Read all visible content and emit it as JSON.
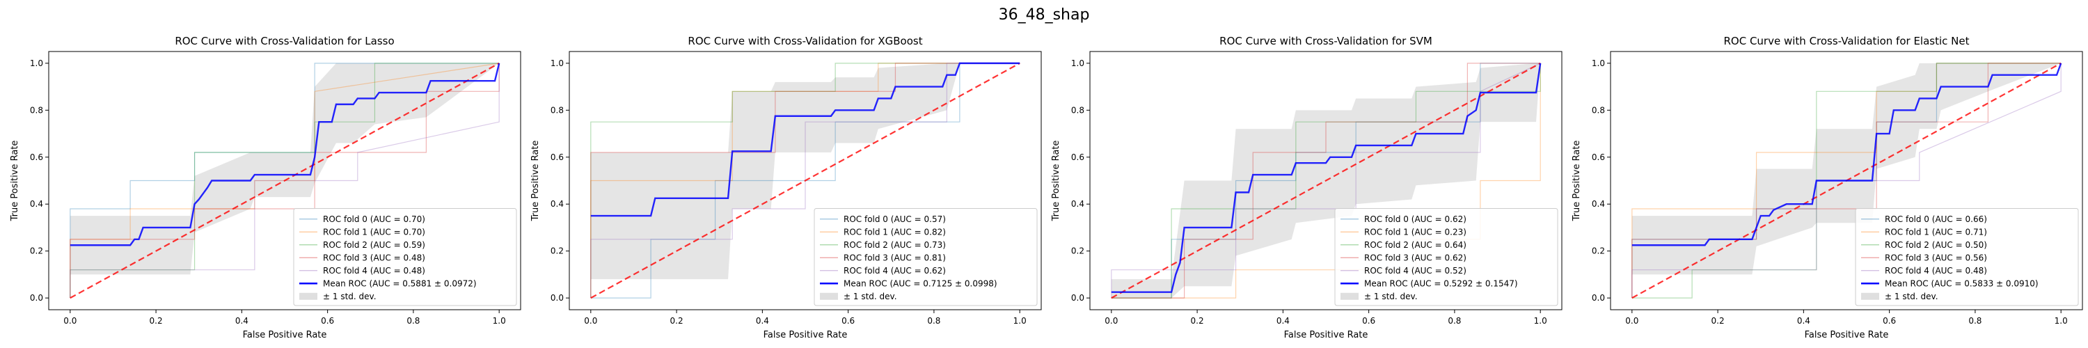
{
  "suptitle": "36_48_shap",
  "colors": {
    "fold": [
      "#1f77b4",
      "#ff7f0e",
      "#2ca02c",
      "#d62728",
      "#9467bd"
    ],
    "mean": "#0000ff",
    "chance": "#ff0000",
    "band": "#bfbfbf"
  },
  "chart_data": [
    {
      "type": "line",
      "title": "ROC Curve with Cross-Validation for Lasso",
      "xlabel": "False Positive Rate",
      "ylabel": "True Positive Rate",
      "xlim": [
        -0.05,
        1.05
      ],
      "ylim": [
        -0.05,
        1.05
      ],
      "xticks": [
        "0.0",
        "0.2",
        "0.4",
        "0.6",
        "0.8",
        "1.0"
      ],
      "yticks": [
        "0.0",
        "0.2",
        "0.4",
        "0.6",
        "0.8",
        "1.0"
      ],
      "legend_position": "lower-right",
      "series": [
        {
          "name": "ROC fold 0 (AUC = 0.70)",
          "kind": "fold",
          "x": [
            0,
            0,
            0.14,
            0.14,
            0.29,
            0.29,
            0.57,
            0.57,
            1.0
          ],
          "y": [
            0,
            0.38,
            0.38,
            0.5,
            0.5,
            0.62,
            0.62,
            1.0,
            1.0
          ]
        },
        {
          "name": "ROC fold 1 (AUC = 0.70)",
          "kind": "fold",
          "x": [
            0,
            0,
            0.14,
            0.14,
            0.43,
            0.43,
            0.57,
            0.57,
            1.0
          ],
          "y": [
            0,
            0.25,
            0.25,
            0.38,
            0.38,
            0.5,
            0.5,
            0.88,
            1.0
          ]
        },
        {
          "name": "ROC fold 2 (AUC = 0.59)",
          "kind": "fold",
          "x": [
            0,
            0,
            0.29,
            0.29,
            0.57,
            0.57,
            0.71,
            0.71,
            1.0
          ],
          "y": [
            0,
            0.12,
            0.12,
            0.62,
            0.62,
            0.75,
            0.75,
            1.0,
            1.0
          ]
        },
        {
          "name": "ROC fold 3 (AUC = 0.48)",
          "kind": "fold",
          "x": [
            0,
            0,
            0.29,
            0.29,
            0.57,
            0.57,
            0.83,
            0.83,
            1.0,
            1.0
          ],
          "y": [
            0,
            0.25,
            0.25,
            0.38,
            0.38,
            0.62,
            0.62,
            0.88,
            0.88,
            1.0
          ]
        },
        {
          "name": "ROC fold 4 (AUC = 0.48)",
          "kind": "fold",
          "x": [
            0,
            0,
            0.43,
            0.43,
            0.67,
            0.67,
            1.0,
            1.0
          ],
          "y": [
            0,
            0.12,
            0.12,
            0.5,
            0.5,
            0.62,
            0.75,
            1.0
          ]
        },
        {
          "name": "Mean ROC (AUC = 0.5881 ± 0.0972)",
          "kind": "mean",
          "x": [
            0,
            0.14,
            0.15,
            0.16,
            0.17,
            0.28,
            0.29,
            0.3,
            0.32,
            0.33,
            0.42,
            0.43,
            0.56,
            0.57,
            0.58,
            0.61,
            0.62,
            0.66,
            0.67,
            0.71,
            0.72,
            0.83,
            0.84,
            0.99,
            1.0
          ],
          "y": [
            0.225,
            0.225,
            0.25,
            0.25,
            0.3,
            0.3,
            0.4,
            0.42,
            0.47,
            0.5,
            0.5,
            0.525,
            0.525,
            0.6,
            0.75,
            0.75,
            0.825,
            0.825,
            0.85,
            0.85,
            0.875,
            0.875,
            0.925,
            0.925,
            1.0
          ]
        },
        {
          "name": "± 1 std. dev.",
          "kind": "band",
          "x": [
            0,
            0.14,
            0.28,
            0.29,
            0.42,
            0.43,
            0.56,
            0.57,
            0.62,
            0.66,
            0.71,
            0.83,
            1.0
          ],
          "lower": [
            0.1,
            0.1,
            0.1,
            0.28,
            0.38,
            0.43,
            0.43,
            0.49,
            0.66,
            0.66,
            0.74,
            0.77,
            1.0
          ],
          "upper": [
            0.35,
            0.35,
            0.35,
            0.52,
            0.62,
            0.62,
            0.62,
            0.9,
            1.0,
            1.0,
            1.0,
            1.0,
            1.0
          ]
        },
        {
          "name": "",
          "kind": "chance",
          "x": [
            0,
            1
          ],
          "y": [
            0,
            1
          ]
        }
      ]
    },
    {
      "type": "line",
      "title": "ROC Curve with Cross-Validation for XGBoost",
      "xlabel": "False Positive Rate",
      "ylabel": "True Positive Rate",
      "xlim": [
        -0.05,
        1.05
      ],
      "ylim": [
        -0.05,
        1.05
      ],
      "xticks": [
        "0.0",
        "0.2",
        "0.4",
        "0.6",
        "0.8",
        "1.0"
      ],
      "yticks": [
        "0.0",
        "0.2",
        "0.4",
        "0.6",
        "0.8",
        "1.0"
      ],
      "legend_position": "lower-right",
      "series": [
        {
          "name": "ROC fold 0 (AUC = 0.57)",
          "kind": "fold",
          "x": [
            0,
            0.14,
            0.14,
            0.29,
            0.29,
            0.57,
            0.57,
            0.86,
            0.86,
            1.0
          ],
          "y": [
            0,
            0,
            0.25,
            0.25,
            0.5,
            0.5,
            0.75,
            0.75,
            1.0,
            1.0
          ]
        },
        {
          "name": "ROC fold 1 (AUC = 0.82)",
          "kind": "fold",
          "x": [
            0,
            0,
            0.33,
            0.33,
            0.67,
            0.67,
            1.0
          ],
          "y": [
            0,
            0.5,
            0.5,
            0.88,
            0.88,
            1.0,
            1.0
          ]
        },
        {
          "name": "ROC fold 2 (AUC = 0.73)",
          "kind": "fold",
          "x": [
            0,
            0,
            0.33,
            0.33,
            0.57,
            0.57,
            1.0
          ],
          "y": [
            0,
            0.75,
            0.75,
            0.88,
            0.88,
            1.0,
            1.0
          ]
        },
        {
          "name": "ROC fold 3 (AUC = 0.81)",
          "kind": "fold",
          "x": [
            0,
            0,
            0.43,
            0.43,
            0.71,
            0.71,
            1.0
          ],
          "y": [
            0,
            0.62,
            0.62,
            0.88,
            0.88,
            1.0,
            1.0
          ]
        },
        {
          "name": "ROC fold 4 (AUC = 0.62)",
          "kind": "fold",
          "x": [
            0,
            0,
            0.33,
            0.33,
            0.5,
            0.5,
            0.83,
            0.83,
            1.0
          ],
          "y": [
            0,
            0.25,
            0.25,
            0.38,
            0.38,
            0.75,
            0.75,
            1.0,
            1.0
          ]
        },
        {
          "name": "Mean ROC (AUC = 0.7125 ± 0.0998)",
          "kind": "mean",
          "x": [
            0,
            0.14,
            0.15,
            0.32,
            0.33,
            0.42,
            0.43,
            0.56,
            0.57,
            0.66,
            0.67,
            0.7,
            0.71,
            0.82,
            0.83,
            0.85,
            0.86,
            1.0
          ],
          "y": [
            0.35,
            0.35,
            0.425,
            0.425,
            0.625,
            0.625,
            0.775,
            0.775,
            0.8,
            0.8,
            0.85,
            0.85,
            0.9,
            0.9,
            0.95,
            0.95,
            1.0,
            1.0
          ]
        },
        {
          "name": "± 1 std. dev.",
          "kind": "band",
          "x": [
            0,
            0.14,
            0.32,
            0.33,
            0.42,
            0.43,
            0.56,
            0.57,
            0.66,
            0.67,
            0.83,
            0.86,
            1.0
          ],
          "lower": [
            0.08,
            0.08,
            0.08,
            0.38,
            0.38,
            0.62,
            0.62,
            0.66,
            0.66,
            0.72,
            0.8,
            1.0,
            1.0
          ],
          "upper": [
            0.62,
            0.62,
            0.62,
            0.88,
            0.88,
            0.92,
            0.92,
            0.94,
            0.94,
            0.98,
            1.0,
            1.0,
            1.0
          ]
        },
        {
          "name": "",
          "kind": "chance",
          "x": [
            0,
            1
          ],
          "y": [
            0,
            1
          ]
        }
      ]
    },
    {
      "type": "line",
      "title": "ROC Curve with Cross-Validation for SVM",
      "xlabel": "False Positive Rate",
      "ylabel": "True Positive Rate",
      "xlim": [
        -0.05,
        1.05
      ],
      "ylim": [
        -0.05,
        1.05
      ],
      "xticks": [
        "0.0",
        "0.2",
        "0.4",
        "0.6",
        "0.8",
        "1.0"
      ],
      "yticks": [
        "0.0",
        "0.2",
        "0.4",
        "0.6",
        "0.8",
        "1.0"
      ],
      "legend_position": "lower-right",
      "series": [
        {
          "name": "ROC fold 0 (AUC = 0.62)",
          "kind": "fold",
          "x": [
            0,
            0.14,
            0.14,
            0.29,
            0.29,
            0.43,
            0.43,
            0.57,
            0.57,
            0.86,
            0.86,
            1.0
          ],
          "y": [
            0,
            0,
            0.25,
            0.25,
            0.5,
            0.5,
            0.62,
            0.62,
            0.75,
            0.75,
            1.0,
            1.0
          ]
        },
        {
          "name": "ROC fold 1 (AUC = 0.23)",
          "kind": "fold",
          "x": [
            0,
            0.29,
            0.29,
            0.71,
            0.71,
            0.86,
            0.86,
            1.0,
            1.0
          ],
          "y": [
            0,
            0,
            0.12,
            0.12,
            0.25,
            0.25,
            0.5,
            0.5,
            1.0
          ]
        },
        {
          "name": "ROC fold 2 (AUC = 0.64)",
          "kind": "fold",
          "x": [
            0,
            0.14,
            0.14,
            0.43,
            0.43,
            0.71,
            0.71,
            1.0,
            1.0
          ],
          "y": [
            0,
            0,
            0.38,
            0.38,
            0.75,
            0.75,
            0.88,
            0.88,
            1.0
          ]
        },
        {
          "name": "ROC fold 3 (AUC = 0.62)",
          "kind": "fold",
          "x": [
            0,
            0.17,
            0.17,
            0.33,
            0.33,
            0.5,
            0.5,
            0.83,
            0.83,
            1.0
          ],
          "y": [
            0,
            0,
            0.25,
            0.25,
            0.62,
            0.62,
            0.75,
            0.75,
            1.0,
            1.0
          ]
        },
        {
          "name": "ROC fold 4 (AUC = 0.52)",
          "kind": "fold",
          "x": [
            0,
            0,
            0.29,
            0.29,
            0.57,
            0.57,
            0.86,
            0.86,
            1.0
          ],
          "y": [
            0,
            0.12,
            0.12,
            0.38,
            0.38,
            0.62,
            0.62,
            0.88,
            1.0
          ]
        },
        {
          "name": "Mean ROC (AUC = 0.5292 ± 0.1547)",
          "kind": "mean",
          "x": [
            0,
            0.14,
            0.15,
            0.16,
            0.17,
            0.28,
            0.29,
            0.32,
            0.33,
            0.42,
            0.43,
            0.5,
            0.51,
            0.56,
            0.57,
            0.7,
            0.71,
            0.82,
            0.83,
            0.85,
            0.86,
            0.99,
            1.0
          ],
          "y": [
            0.025,
            0.025,
            0.1,
            0.15,
            0.3,
            0.3,
            0.45,
            0.45,
            0.525,
            0.525,
            0.575,
            0.575,
            0.6,
            0.6,
            0.65,
            0.65,
            0.7,
            0.7,
            0.775,
            0.8,
            0.875,
            0.875,
            1.0
          ]
        },
        {
          "name": "± 1 std. dev.",
          "kind": "band",
          "x": [
            0,
            0.14,
            0.17,
            0.28,
            0.29,
            0.42,
            0.43,
            0.56,
            0.57,
            0.7,
            0.71,
            0.85,
            0.86,
            0.99,
            1.0
          ],
          "lower": [
            0.0,
            0.0,
            0.05,
            0.05,
            0.18,
            0.25,
            0.32,
            0.35,
            0.4,
            0.42,
            0.48,
            0.5,
            0.75,
            0.75,
            1.0
          ],
          "upper": [
            0.08,
            0.08,
            0.5,
            0.5,
            0.72,
            0.72,
            0.8,
            0.8,
            0.85,
            0.85,
            0.9,
            0.92,
            0.98,
            1.0,
            1.0
          ]
        },
        {
          "name": "",
          "kind": "chance",
          "x": [
            0,
            1
          ],
          "y": [
            0,
            1
          ]
        }
      ]
    },
    {
      "type": "line",
      "title": "ROC Curve with Cross-Validation for Elastic Net",
      "xlabel": "False Positive Rate",
      "ylabel": "True Positive Rate",
      "xlim": [
        -0.05,
        1.05
      ],
      "ylim": [
        -0.05,
        1.05
      ],
      "xticks": [
        "0.0",
        "0.2",
        "0.4",
        "0.6",
        "0.8",
        "1.0"
      ],
      "yticks": [
        "0.0",
        "0.2",
        "0.4",
        "0.6",
        "0.8",
        "1.0"
      ],
      "legend_position": "lower-right",
      "series": [
        {
          "name": "ROC fold 0 (AUC = 0.66)",
          "kind": "fold",
          "x": [
            0,
            0,
            0.29,
            0.29,
            0.43,
            0.43,
            0.57,
            0.57,
            0.71,
            0.71,
            1.0
          ],
          "y": [
            0,
            0.25,
            0.25,
            0.38,
            0.38,
            0.5,
            0.5,
            0.75,
            0.75,
            1.0,
            1.0
          ]
        },
        {
          "name": "ROC fold 1 (AUC = 0.71)",
          "kind": "fold",
          "x": [
            0,
            0,
            0.29,
            0.29,
            0.57,
            0.57,
            0.71,
            0.71,
            1.0
          ],
          "y": [
            0,
            0.38,
            0.38,
            0.62,
            0.62,
            0.88,
            0.88,
            1.0,
            1.0
          ]
        },
        {
          "name": "ROC fold 2 (AUC = 0.50)",
          "kind": "fold",
          "x": [
            0,
            0.14,
            0.14,
            0.43,
            0.43,
            0.43,
            0.71,
            0.71,
            1.0
          ],
          "y": [
            0,
            0,
            0.12,
            0.12,
            0.5,
            0.88,
            0.88,
            1.0,
            1.0
          ]
        },
        {
          "name": "ROC fold 3 (AUC = 0.56)",
          "kind": "fold",
          "x": [
            0,
            0,
            0.29,
            0.29,
            0.57,
            0.57,
            0.83,
            0.83,
            1.0
          ],
          "y": [
            0,
            0.25,
            0.25,
            0.38,
            0.38,
            0.75,
            0.75,
            1.0,
            1.0
          ]
        },
        {
          "name": "ROC fold 4 (AUC = 0.48)",
          "kind": "fold",
          "x": [
            0,
            0,
            0.43,
            0.43,
            0.67,
            0.67,
            1.0,
            1.0
          ],
          "y": [
            0,
            0.12,
            0.12,
            0.5,
            0.5,
            0.62,
            0.88,
            1.0
          ]
        },
        {
          "name": "Mean ROC (AUC = 0.5833 ± 0.0910)",
          "kind": "mean",
          "x": [
            0,
            0.17,
            0.18,
            0.28,
            0.29,
            0.3,
            0.32,
            0.33,
            0.36,
            0.42,
            0.43,
            0.56,
            0.57,
            0.6,
            0.61,
            0.66,
            0.67,
            0.71,
            0.72,
            0.83,
            0.84,
            0.99,
            1.0
          ],
          "y": [
            0.225,
            0.225,
            0.25,
            0.25,
            0.3,
            0.35,
            0.35,
            0.375,
            0.4,
            0.4,
            0.5,
            0.5,
            0.7,
            0.7,
            0.8,
            0.8,
            0.85,
            0.85,
            0.9,
            0.9,
            0.95,
            0.95,
            1.0
          ]
        },
        {
          "name": "± 1 std. dev.",
          "kind": "band",
          "x": [
            0,
            0.17,
            0.28,
            0.29,
            0.42,
            0.43,
            0.56,
            0.57,
            0.66,
            0.67,
            0.71,
            0.72,
            0.83,
            1.0
          ],
          "lower": [
            0.1,
            0.1,
            0.1,
            0.22,
            0.3,
            0.32,
            0.32,
            0.55,
            0.6,
            0.72,
            0.72,
            0.8,
            0.88,
            1.0
          ],
          "upper": [
            0.35,
            0.35,
            0.35,
            0.55,
            0.55,
            0.72,
            0.72,
            0.9,
            0.95,
            1.0,
            1.0,
            1.0,
            1.0,
            1.0
          ]
        },
        {
          "name": "",
          "kind": "chance",
          "x": [
            0,
            1
          ],
          "y": [
            0,
            1
          ]
        }
      ]
    }
  ]
}
